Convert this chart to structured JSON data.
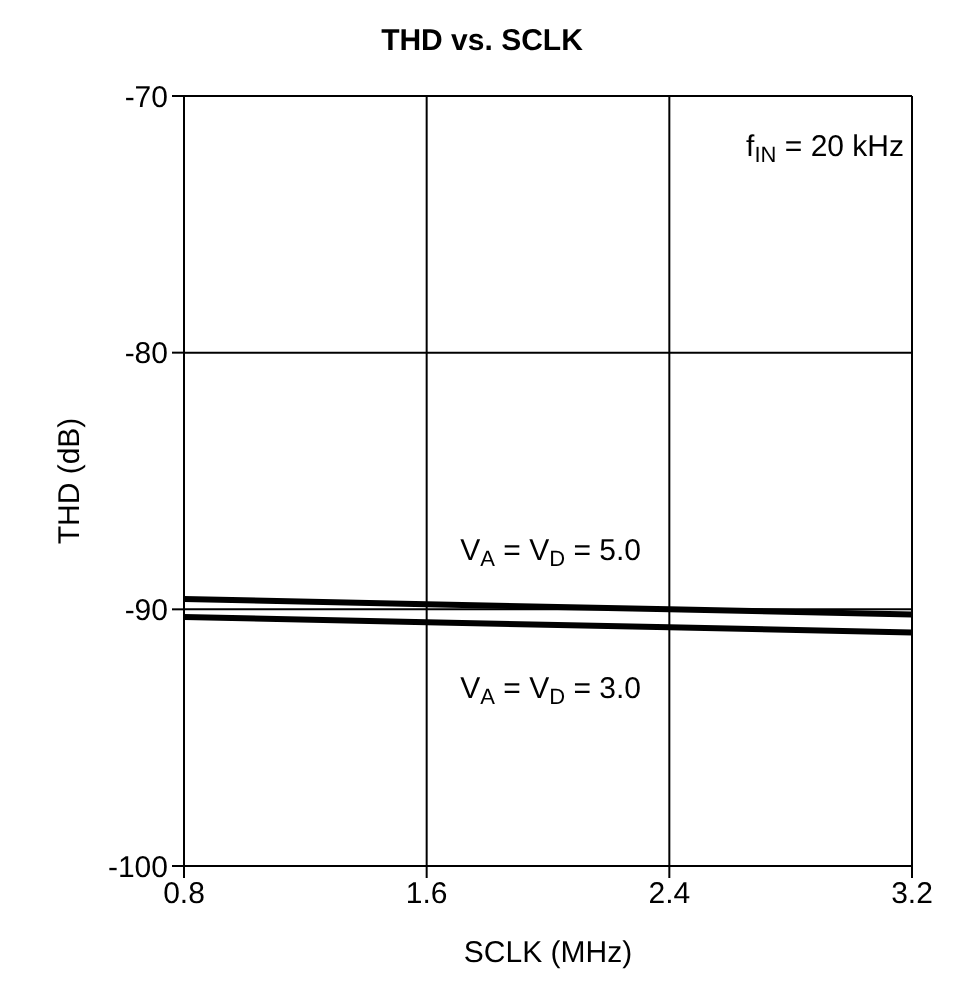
{
  "chart_data": {
    "type": "line",
    "title": "THD vs. SCLK",
    "xlabel": "SCLK (MHz)",
    "ylabel": "THD (dB)",
    "x": [
      0.8,
      1.6,
      2.4,
      3.2
    ],
    "series": [
      {
        "name": "V$_{A}$ = V$_{D}$ = 5.0",
        "color": "#000000",
        "values": [
          -89.6,
          -89.8,
          -90.0,
          -90.2
        ]
      },
      {
        "name": "V$_{A}$ = V$_{D}$ = 3.0",
        "color": "#000000",
        "values": [
          -90.3,
          -90.5,
          -90.7,
          -90.9
        ]
      }
    ],
    "xlim": [
      0.8,
      3.2
    ],
    "xticks": [
      {
        "value": 0.8,
        "label": "0.8"
      },
      {
        "value": 1.6,
        "label": "1.6"
      },
      {
        "value": 2.4,
        "label": "2.4"
      },
      {
        "value": 3.2,
        "label": "3.2"
      }
    ],
    "ylim": [
      -100,
      -70
    ],
    "yticks": [
      -100,
      -90,
      -80,
      -70
    ],
    "grid": true,
    "legend": false,
    "marker": "none",
    "line_style": "solid",
    "annotations": [
      "f$_{IN}$ = 20 kHz"
    ]
  }
}
